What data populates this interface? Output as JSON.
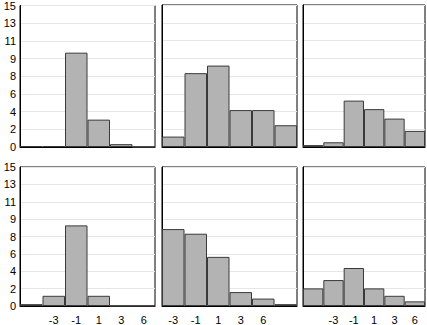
{
  "chart_data": [
    {
      "type": "bar",
      "categories": [
        null,
        "-3",
        "-1",
        "1",
        "3",
        "6"
      ],
      "values": [
        0.1,
        0.1,
        10,
        2.9,
        0.3,
        0
      ],
      "color": "#b3b3b3",
      "ylim": [
        0,
        15
      ],
      "yticks": [
        0,
        {
          "value": 1.875,
          "label": "2"
        },
        {
          "value": 3.75,
          "label": "4"
        },
        {
          "value": 5.625,
          "label": "6"
        },
        {
          "value": 7.5,
          "label": "8"
        },
        {
          "value": 9.375,
          "label": "9"
        },
        {
          "value": 11.25,
          "label": "11"
        },
        {
          "value": 13.125,
          "label": "13"
        },
        15
      ],
      "grid": true,
      "tick_labels": "y"
    },
    {
      "type": "bar",
      "categories": [
        null,
        "-3",
        "-1",
        "1",
        "3",
        "6"
      ],
      "values": [
        1.1,
        7.8,
        8.6,
        3.9,
        3.9,
        2.3
      ],
      "color": "#b3b3b3",
      "ylim": [
        0,
        15
      ],
      "yticks": [
        0,
        {
          "value": 1.875,
          "label": "2"
        },
        {
          "value": 3.75,
          "label": "4"
        },
        {
          "value": 5.625,
          "label": "6"
        },
        {
          "value": 7.5,
          "label": "8"
        },
        {
          "value": 9.375,
          "label": "9"
        },
        {
          "value": 11.25,
          "label": "11"
        },
        {
          "value": 13.125,
          "label": "13"
        },
        15
      ],
      "grid": true,
      "tick_labels": false
    },
    {
      "type": "bar",
      "categories": [
        null,
        "-3",
        "-1",
        "1",
        "3",
        "6"
      ],
      "values": [
        0.2,
        0.5,
        4.9,
        4.0,
        3.0,
        1.7
      ],
      "color": "#b3b3b3",
      "ylim": [
        0,
        15
      ],
      "yticks": [
        0,
        {
          "value": 1.875,
          "label": "2"
        },
        {
          "value": 3.75,
          "label": "4"
        },
        {
          "value": 5.625,
          "label": "6"
        },
        {
          "value": 7.5,
          "label": "8"
        },
        {
          "value": 9.375,
          "label": "9"
        },
        {
          "value": 11.25,
          "label": "11"
        },
        {
          "value": 13.125,
          "label": "13"
        },
        15
      ],
      "grid": true,
      "tick_labels": false
    },
    {
      "type": "bar",
      "categories": [
        null,
        "-3",
        "-1",
        "1",
        "3",
        "6"
      ],
      "values": [
        0.2,
        1.1,
        8.7,
        1.1,
        0,
        0
      ],
      "color": "#b3b3b3",
      "ylim": [
        0,
        15
      ],
      "yticks": [
        0,
        {
          "value": 1.875,
          "label": "2"
        },
        {
          "value": 3.75,
          "label": "4"
        },
        {
          "value": 5.625,
          "label": "6"
        },
        {
          "value": 7.5,
          "label": "8"
        },
        {
          "value": 9.375,
          "label": "9"
        },
        {
          "value": 11.25,
          "label": "11"
        },
        {
          "value": 13.125,
          "label": "13"
        },
        15
      ],
      "grid": true,
      "tick_labels": true
    },
    {
      "type": "bar",
      "categories": [
        "-3",
        "-1",
        "1",
        "3",
        "6",
        null
      ],
      "values": [
        8.3,
        7.8,
        5.3,
        1.5,
        0.8,
        0.2
      ],
      "color": "#b3b3b3",
      "ylim": [
        0,
        15
      ],
      "yticks": [
        0,
        {
          "value": 1.875,
          "label": "2"
        },
        {
          "value": 3.75,
          "label": "4"
        },
        {
          "value": 5.625,
          "label": "6"
        },
        {
          "value": 7.5,
          "label": "8"
        },
        {
          "value": 9.375,
          "label": "9"
        },
        {
          "value": 11.25,
          "label": "11"
        },
        {
          "value": 13.125,
          "label": "13"
        },
        15
      ],
      "grid": true,
      "tick_labels": "x"
    },
    {
      "type": "bar",
      "categories": [
        null,
        "-3",
        "-1",
        "1",
        "3",
        "6"
      ],
      "values": [
        1.9,
        2.8,
        4.1,
        1.9,
        1.1,
        0.5
      ],
      "color": "#b3b3b3",
      "ylim": [
        0,
        15
      ],
      "yticks": [
        0,
        {
          "value": 1.875,
          "label": "2"
        },
        {
          "value": 3.75,
          "label": "4"
        },
        {
          "value": 5.625,
          "label": "6"
        },
        {
          "value": 7.5,
          "label": "8"
        },
        {
          "value": 9.375,
          "label": "9"
        },
        {
          "value": 11.25,
          "label": "11"
        },
        {
          "value": 13.125,
          "label": "13"
        },
        15
      ],
      "grid": true,
      "tick_labels": "x"
    }
  ]
}
